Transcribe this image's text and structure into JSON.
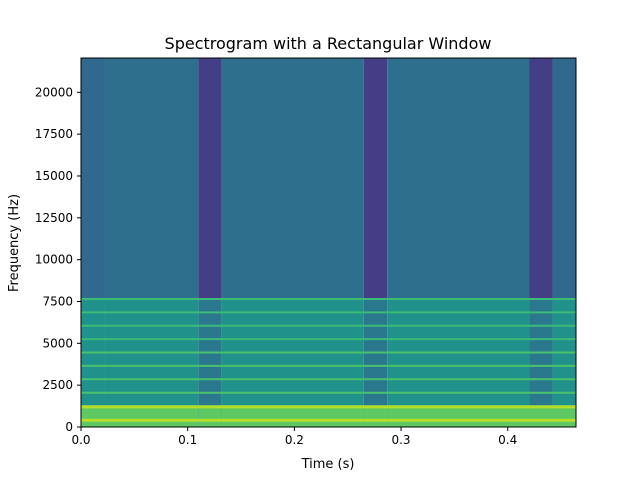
{
  "chart_data": {
    "type": "heatmap",
    "title": "Spectrogram with a Rectangular Window",
    "xlabel": "Time (s)",
    "ylabel": "Frequency (Hz)",
    "xlim": [
      0,
      0.464
    ],
    "ylim": [
      0,
      22050
    ],
    "x_ticks": [
      "0.0",
      "0.1",
      "0.2",
      "0.3",
      "0.4"
    ],
    "x_tick_values": [
      0.0,
      0.1,
      0.2,
      0.3,
      0.4
    ],
    "y_ticks": [
      "0",
      "2500",
      "5000",
      "7500",
      "10000",
      "12500",
      "15000",
      "17500",
      "20000"
    ],
    "y_tick_values": [
      0,
      2500,
      5000,
      7500,
      10000,
      12500,
      15000,
      17500,
      20000
    ],
    "grid": false,
    "colormap": "viridis",
    "time_segments": [
      {
        "t0": 0.0,
        "t1": 0.022,
        "kind": "edge"
      },
      {
        "t0": 0.022,
        "t1": 0.11,
        "kind": "tone"
      },
      {
        "t0": 0.11,
        "t1": 0.132,
        "kind": "silence"
      },
      {
        "t0": 0.132,
        "t1": 0.265,
        "kind": "tone"
      },
      {
        "t0": 0.265,
        "t1": 0.287,
        "kind": "silence"
      },
      {
        "t0": 0.287,
        "t1": 0.42,
        "kind": "tone"
      },
      {
        "t0": 0.42,
        "t1": 0.442,
        "kind": "silence"
      },
      {
        "t0": 0.442,
        "t1": 0.464,
        "kind": "edge"
      }
    ],
    "harmonic_lines_hz": [
      400,
      1200,
      2050,
      2850,
      3650,
      4450,
      5250,
      6050,
      6850,
      7650
    ],
    "high_frequency_cutoff_hz": 7700,
    "colors": {
      "low_energy": "#433e85",
      "background": "#2e6f8e",
      "mid_energy": "#21918c",
      "high_energy": "#5ec962",
      "peak_energy": "#b5de2b"
    }
  }
}
